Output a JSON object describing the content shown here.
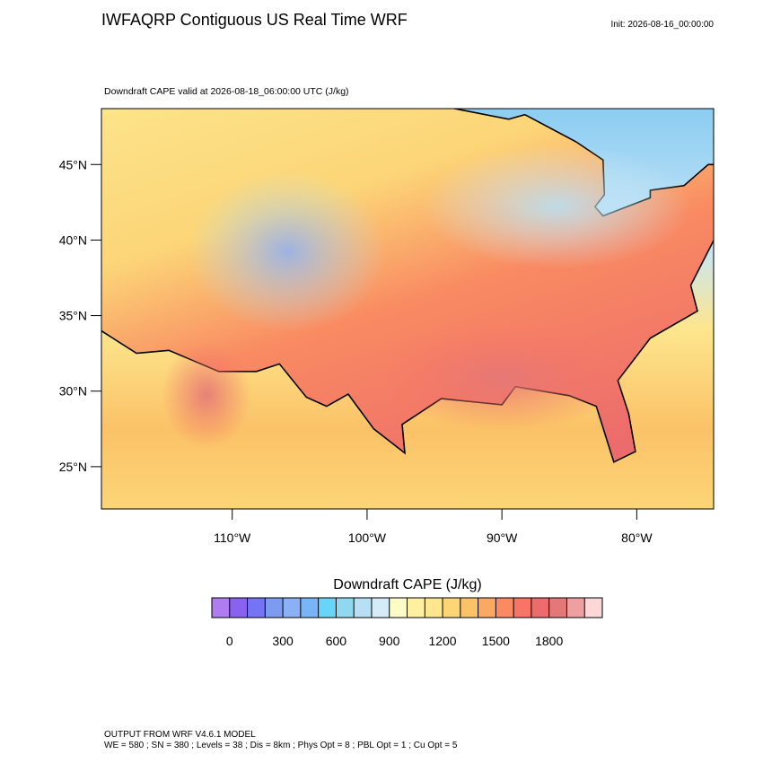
{
  "header": {
    "title": "IWFAQRP Contiguous US Real Time WRF",
    "init": "Init: 2026-08-16_00:00:00"
  },
  "map": {
    "subtitle": "Downdraft CAPE valid at 2026-08-18_06:00:00 UTC   (J/kg)",
    "lonlim": [
      -119.7,
      -74.3
    ],
    "latlim": [
      22.2,
      48.7
    ],
    "lat_ticks": [
      {
        "value": 45,
        "label": "45°N"
      },
      {
        "value": 40,
        "label": "40°N"
      },
      {
        "value": 35,
        "label": "35°N"
      },
      {
        "value": 30,
        "label": "30°N"
      },
      {
        "value": 25,
        "label": "25°N"
      }
    ],
    "lon_ticks": [
      {
        "value": -110,
        "label": "110°W"
      },
      {
        "value": -100,
        "label": "100°W"
      },
      {
        "value": -90,
        "label": "90°W"
      },
      {
        "value": -80,
        "label": "80°W"
      }
    ]
  },
  "colorbar": {
    "title": "Downdraft CAPE  (J/kg)",
    "levels": [
      0,
      100,
      200,
      300,
      400,
      500,
      600,
      700,
      800,
      900,
      1000,
      1100,
      1200,
      1300,
      1400,
      1500,
      1600,
      1700,
      1800,
      1900,
      2000
    ],
    "colors": [
      "#b07cf2",
      "#8a62f0",
      "#7474f5",
      "#7e9cef",
      "#8cb0f5",
      "#78b5f7",
      "#68d4f8",
      "#8fd8f0",
      "#b8e0f5",
      "#d5ebf8",
      "#fdfbc6",
      "#fff0a0",
      "#fde68d",
      "#fcd577",
      "#fbc267",
      "#fba862",
      "#f98a62",
      "#f77466",
      "#ec6b6c",
      "#e47878",
      "#eea0a0",
      "#fcd7d7"
    ],
    "ticks": [
      0,
      300,
      600,
      900,
      1200,
      1500,
      1800
    ]
  },
  "footer": {
    "line1": "OUTPUT FROM WRF V4.6.1 MODEL",
    "line2": "WE = 580 ; SN = 380 ; Levels = 38 ; Dis = 8km ; Phys Opt = 8 ; PBL Opt = 1 ; Cu Opt = 5"
  }
}
